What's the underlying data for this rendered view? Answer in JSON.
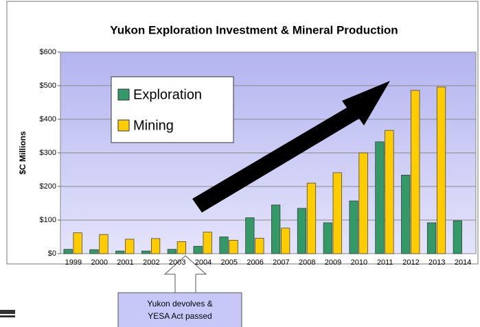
{
  "chart_data": {
    "type": "bar",
    "title": "Yukon Exploration Investment & Mineral Production",
    "y_label": "$C Millions",
    "categories": [
      "1999",
      "2000",
      "2001",
      "2002",
      "2003",
      "2004",
      "2005",
      "2006",
      "2007",
      "2008",
      "2009",
      "2010",
      "2011",
      "2012",
      "2013",
      "2014"
    ],
    "series": [
      {
        "name": "Exploration",
        "color": "#339966",
        "values": [
          13,
          12,
          8,
          8,
          13,
          22,
          50,
          107,
          145,
          135,
          92,
          157,
          333,
          234,
          92,
          98
        ]
      },
      {
        "name": "Mining",
        "color": "#ffcc00",
        "values": [
          62,
          57,
          43,
          45,
          36,
          64,
          40,
          46,
          76,
          210,
          241,
          300,
          367,
          486,
          496,
          null
        ]
      }
    ],
    "ylim": [
      0,
      600
    ],
    "yticks": [
      {
        "value": 0,
        "label": "$0"
      },
      {
        "value": 100,
        "label": "$100"
      },
      {
        "value": 200,
        "label": "$200"
      },
      {
        "value": 300,
        "label": "$300"
      },
      {
        "value": 400,
        "label": "$400"
      },
      {
        "value": 500,
        "label": "$500"
      },
      {
        "value": 600,
        "label": "$600"
      }
    ],
    "grid": true,
    "legend": "upper left",
    "annotation": [
      "Yukon devolves &",
      "YESA Act passed"
    ]
  }
}
